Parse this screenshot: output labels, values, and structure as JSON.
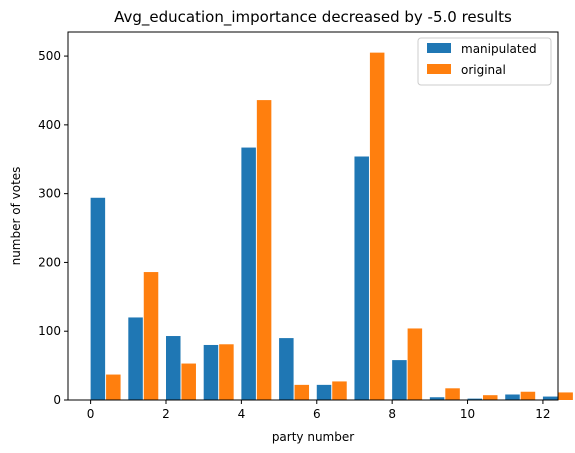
{
  "chart_data": {
    "type": "bar",
    "title": "Avg_education_importance decreased by -5.0 results",
    "xlabel": "party number",
    "ylabel": "number of votes",
    "xlim": [
      -0.6,
      12.4
    ],
    "ylim": [
      0,
      535
    ],
    "x_ticks": [
      0,
      2,
      4,
      6,
      8,
      10,
      12
    ],
    "y_ticks": [
      0,
      100,
      200,
      300,
      400,
      500
    ],
    "grid": false,
    "legend_position": "top-right",
    "categories": [
      0,
      1,
      2,
      3,
      4,
      5,
      6,
      7,
      8,
      9,
      10,
      11,
      12
    ],
    "series": [
      {
        "name": "manipulated",
        "color": "#1f77b4",
        "values": [
          294,
          120,
          93,
          80,
          367,
          90,
          22,
          354,
          58,
          4,
          2,
          8,
          5
        ]
      },
      {
        "name": "original",
        "color": "#ff7f0e",
        "values": [
          37,
          186,
          53,
          81,
          436,
          22,
          27,
          505,
          104,
          17,
          7,
          12,
          11
        ]
      }
    ]
  }
}
